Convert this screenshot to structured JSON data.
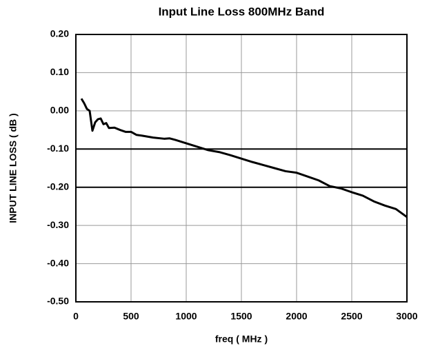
{
  "chart_data": {
    "type": "line",
    "title": "Input Line Loss 800MHz Band",
    "x_label": "freq ( MHz )",
    "y_label": "INPUT LINE LOSS ( dB )",
    "xlim": [
      0,
      3000
    ],
    "xticks": [
      0,
      500,
      1000,
      1500,
      2000,
      2500,
      3000
    ],
    "ylim": [
      -0.5,
      0.2
    ],
    "yticks": [
      {
        "value": -0.5,
        "label": "-0.50"
      },
      {
        "value": -0.4,
        "label": "-0.40"
      },
      {
        "value": -0.3,
        "label": "-0.30"
      },
      {
        "value": -0.2,
        "label": "-0.20"
      },
      {
        "value": -0.1,
        "label": "-0.10"
      },
      {
        "value": 0,
        "label": "0.00"
      },
      {
        "value": 0.1,
        "label": "0.10"
      },
      {
        "value": 0.2,
        "label": "0.20"
      }
    ],
    "grid": true,
    "limit_lines": [
      -0.1,
      -0.2
    ],
    "x": [
      50,
      75,
      100,
      125,
      150,
      175,
      200,
      225,
      250,
      275,
      300,
      350,
      400,
      450,
      500,
      550,
      600,
      700,
      800,
      850,
      900,
      1000,
      1100,
      1200,
      1300,
      1400,
      1500,
      1600,
      1700,
      1800,
      1900,
      2000,
      2100,
      2200,
      2300,
      2400,
      2500,
      2600,
      2700,
      2800,
      2900,
      3000
    ],
    "series": [
      {
        "color": "#000000",
        "values": [
          0.032,
          0.02,
          0.005,
          0.0,
          -0.052,
          -0.03,
          -0.022,
          -0.02,
          -0.035,
          -0.032,
          -0.045,
          -0.044,
          -0.05,
          -0.055,
          -0.055,
          -0.063,
          -0.065,
          -0.07,
          -0.073,
          -0.072,
          -0.076,
          -0.085,
          -0.094,
          -0.103,
          -0.108,
          -0.116,
          -0.125,
          -0.134,
          -0.142,
          -0.15,
          -0.158,
          -0.162,
          -0.172,
          -0.182,
          -0.197,
          -0.203,
          -0.213,
          -0.222,
          -0.237,
          -0.248,
          -0.257,
          -0.278
        ]
      }
    ]
  }
}
